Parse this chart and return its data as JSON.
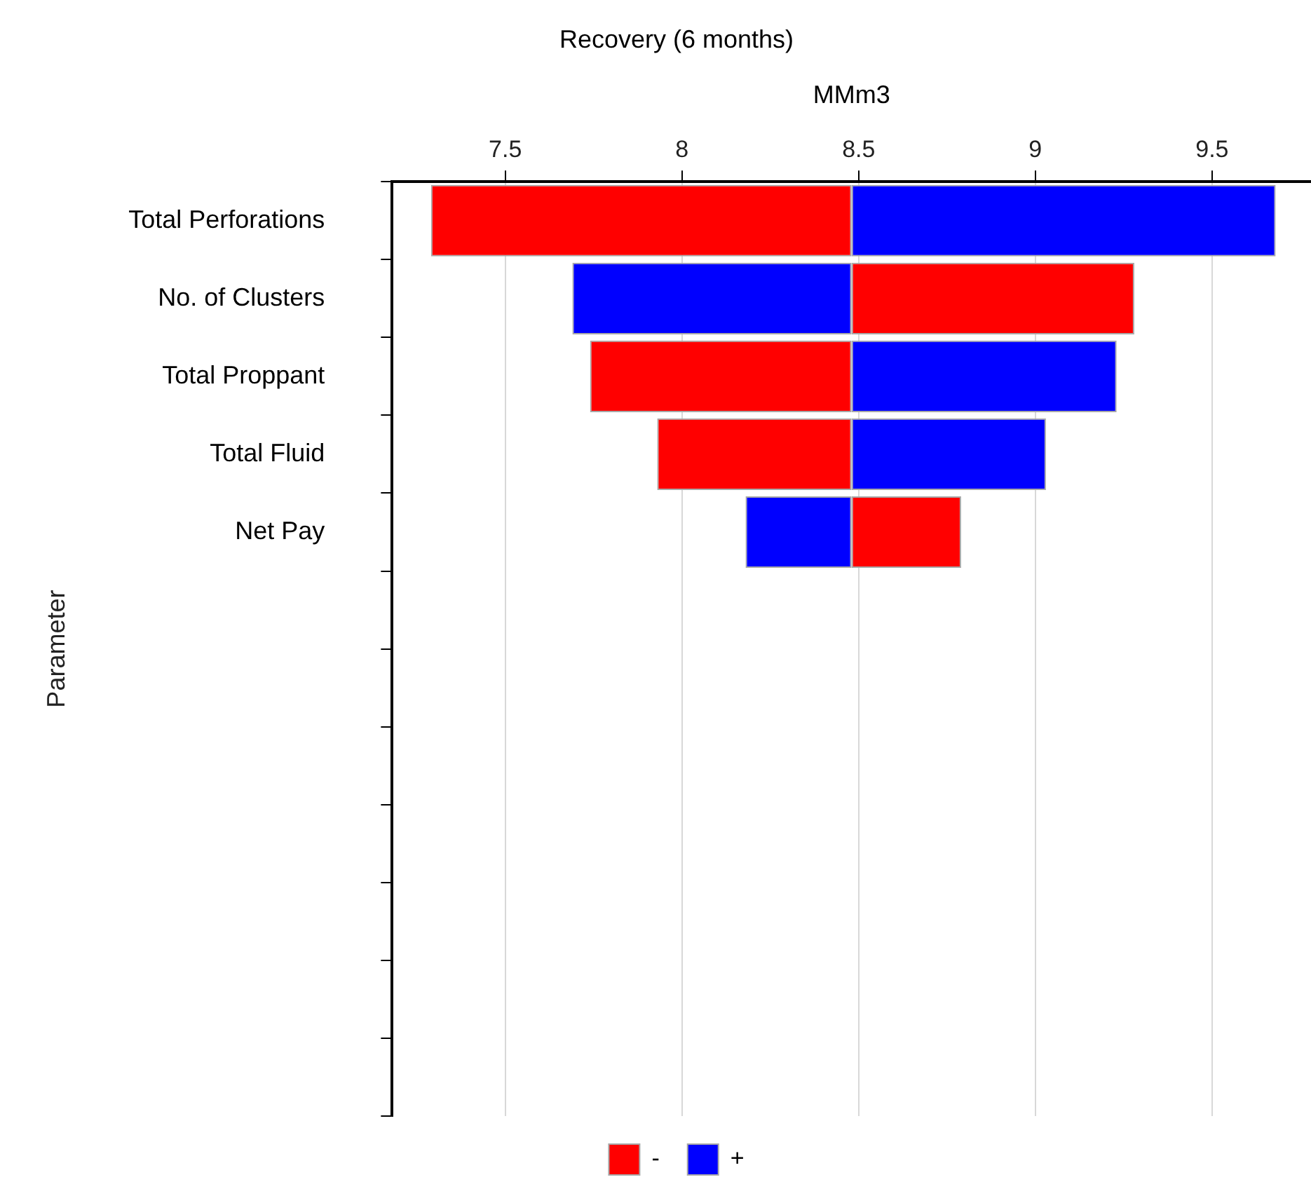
{
  "chart_data": {
    "type": "bar",
    "orientation": "horizontal",
    "title": "Recovery (6 months)",
    "xlabel": "MMm3",
    "ylabel": "Parameter",
    "categories": [
      "Total Perforations",
      "No. of Clusters",
      "Total Proppant",
      "Total Fluid",
      "Net Pay",
      null,
      null,
      null,
      null,
      null,
      null,
      null
    ],
    "series": [
      {
        "name": "-",
        "color": "#ff0000",
        "base": [
          8.48,
          8.48,
          8.48,
          8.48,
          8.48,
          null,
          null,
          null,
          null,
          null,
          null,
          null
        ],
        "values": [
          -1.19,
          0.8,
          -0.74,
          -0.55,
          0.31,
          null,
          null,
          null,
          null,
          null,
          null,
          null
        ]
      },
      {
        "name": "+",
        "color": "#0000ff",
        "base": [
          8.48,
          8.48,
          8.48,
          8.48,
          8.48,
          null,
          null,
          null,
          null,
          null,
          null,
          null
        ],
        "values": [
          1.2,
          -0.79,
          0.75,
          0.55,
          -0.3,
          null,
          null,
          null,
          null,
          null,
          null,
          null
        ]
      }
    ],
    "xlim": [
      7.18,
      9.78
    ],
    "xticks": [
      7.5,
      8,
      8.5,
      9,
      9.5
    ],
    "grid": "x",
    "legend": "bottom"
  }
}
